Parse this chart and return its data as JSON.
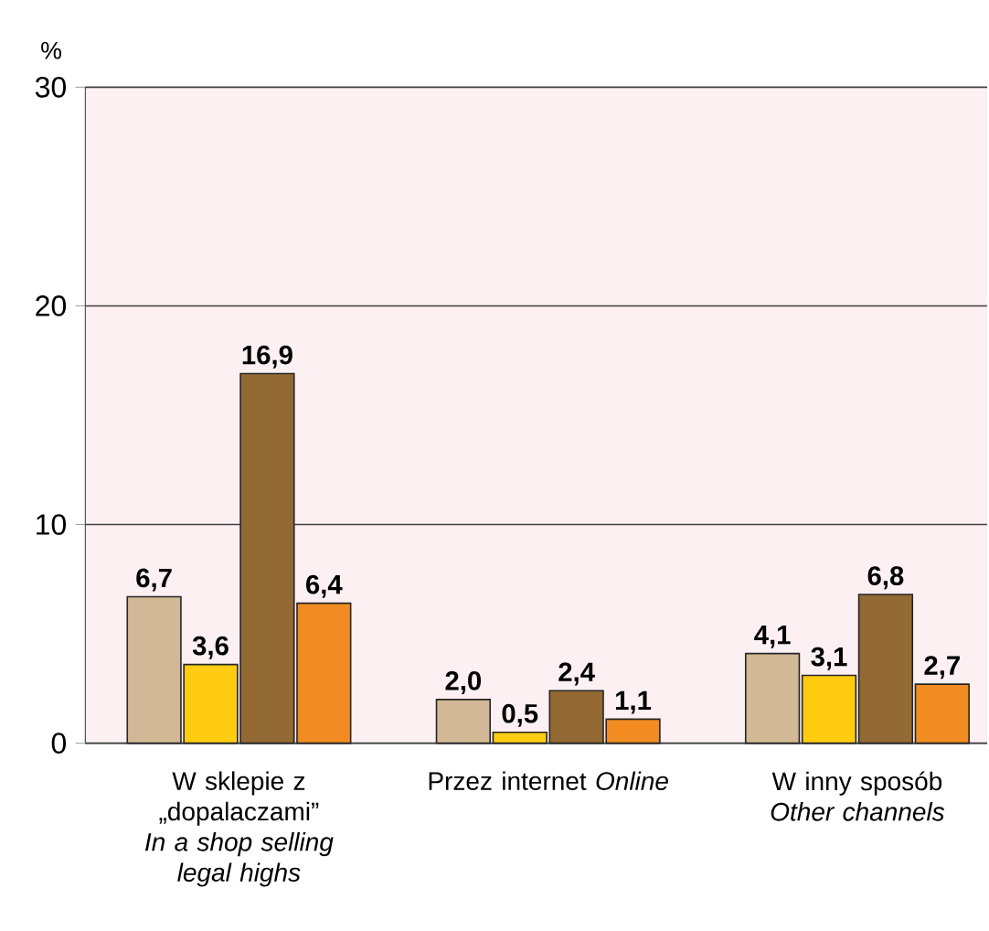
{
  "chart_data": {
    "type": "bar",
    "ylabel": "%",
    "categories": [
      "W sklepie z „dopalaczami” *In a shop selling legal highs*",
      "Przez internet *Online*",
      "W inny sposób *Other channels*"
    ],
    "series": [
      {
        "color": "#d2b896",
        "values": [
          6.7,
          2.0,
          4.1
        ],
        "value_labels": [
          "6,7",
          "2,0",
          "4,1"
        ]
      },
      {
        "color": "#ffcc11",
        "values": [
          3.6,
          0.5,
          3.1
        ],
        "value_labels": [
          "3,6",
          "0,5",
          "3,1"
        ]
      },
      {
        "color": "#936a33",
        "values": [
          16.9,
          2.4,
          6.8
        ],
        "value_labels": [
          "16,9",
          "2,4",
          "6,8"
        ]
      },
      {
        "color": "#f28c22",
        "values": [
          6.4,
          1.1,
          2.7
        ],
        "value_labels": [
          "6,4",
          "1,1",
          "2,7"
        ]
      }
    ],
    "ylim": [
      0,
      30
    ],
    "yticks": [
      0,
      10,
      20,
      30
    ],
    "grid": "y"
  }
}
